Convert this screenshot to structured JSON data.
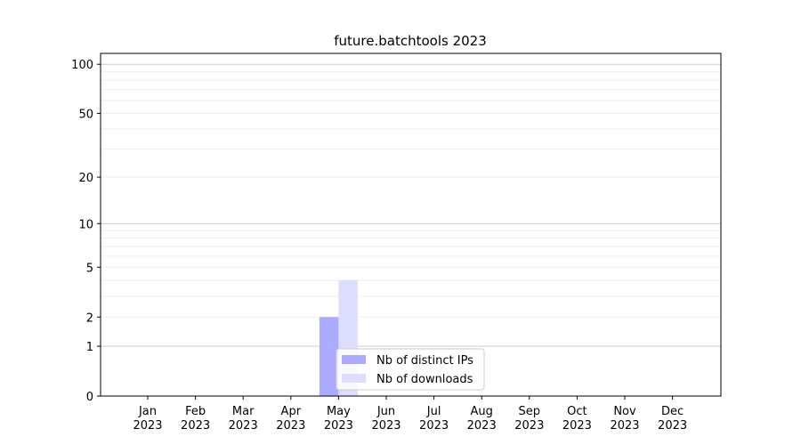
{
  "chart_data": {
    "type": "bar",
    "title": "future.batchtools 2023",
    "xlabel": "",
    "ylabel": "",
    "yscale": "log(1+y)",
    "ylim": [
      0,
      116
    ],
    "grid": "horizontal",
    "categories": [
      "Jan\n2023",
      "Feb\n2023",
      "Mar\n2023",
      "Apr\n2023",
      "May\n2023",
      "Jun\n2023",
      "Jul\n2023",
      "Aug\n2023",
      "Sep\n2023",
      "Oct\n2023",
      "Nov\n2023",
      "Dec\n2023"
    ],
    "yticks": [
      0,
      1,
      2,
      5,
      10,
      20,
      50,
      100
    ],
    "series": [
      {
        "name": "Nb of distinct IPs",
        "color": "#aaaaff",
        "values": [
          0,
          0,
          0,
          0,
          2,
          0,
          0,
          0,
          0,
          0,
          0,
          0
        ]
      },
      {
        "name": "Nb of downloads",
        "color": "#ddddff",
        "values": [
          0,
          0,
          0,
          0,
          4,
          0,
          0,
          0,
          0,
          0,
          0,
          0
        ]
      }
    ],
    "legend": "lower-center"
  }
}
